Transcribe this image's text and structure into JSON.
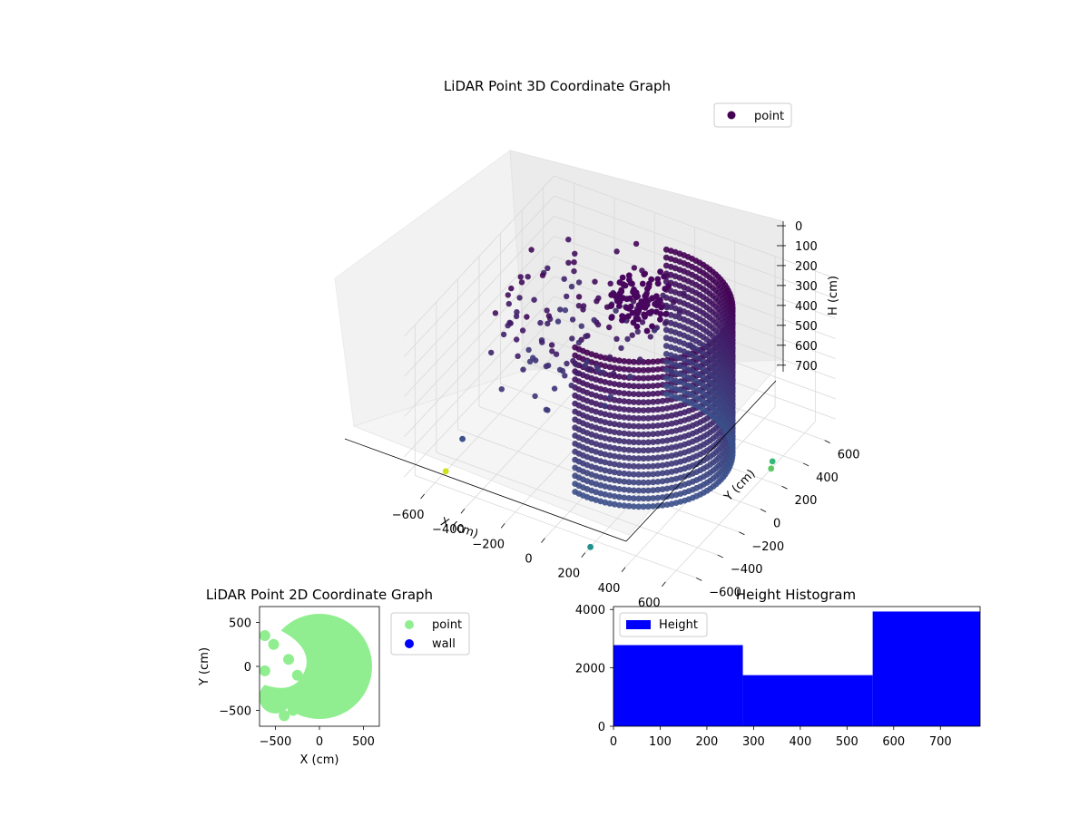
{
  "figure": {
    "background": "#ffffff"
  },
  "chart_data": [
    {
      "type": "scatter",
      "projection": "3d",
      "title": "LiDAR Point 3D Coordinate Graph",
      "xlabel": "X (cm)",
      "ylabel": "Y (cm)",
      "zlabel": "H (cm)",
      "xlim": [
        -700,
        700
      ],
      "ylim": [
        -700,
        700
      ],
      "zlim": [
        750,
        0
      ],
      "xticks": [
        "−600",
        "−400",
        "−200",
        "0",
        "200",
        "400",
        "600"
      ],
      "yticks": [
        "−600",
        "−400",
        "−200",
        "0",
        "200",
        "400",
        "600"
      ],
      "zticks": [
        "0",
        "100",
        "200",
        "300",
        "400",
        "500",
        "600",
        "700"
      ],
      "colormap": "viridis",
      "legend": {
        "placement": "top-right",
        "entries": [
          {
            "label": "point",
            "color": "#440154"
          }
        ]
      },
      "series": [
        {
          "name": "point",
          "wall": {
            "shape": "semicircular arc",
            "radius_approx": 600,
            "h_range": [
              0,
              750
            ]
          },
          "stray_points": [
            {
              "x": -650,
              "y": -250,
              "h": 750,
              "color": "#3b528b"
            },
            {
              "x": -600,
              "y": -500,
              "h": 750,
              "color": "#cfe11c"
            },
            {
              "x": 200,
              "y": -650,
              "h": 750,
              "color": "#21918c"
            },
            {
              "x": 620,
              "y": 250,
              "h": 720,
              "color": "#5ec962"
            },
            {
              "x": 600,
              "y": 300,
              "h": 720,
              "color": "#35b779"
            }
          ]
        }
      ],
      "grid": true
    },
    {
      "type": "scatter",
      "title": "LiDAR Point 2D Coordinate Graph",
      "xlabel": "X (cm)",
      "ylabel": "Y (cm)",
      "xlim": [
        -680,
        680
      ],
      "ylim": [
        -680,
        680
      ],
      "xticks": [
        "−500",
        "0",
        "500"
      ],
      "yticks": [
        "500",
        "0",
        "−500"
      ],
      "legend": {
        "placement": "right",
        "entries": [
          {
            "label": "point",
            "color": "#90ee90"
          },
          {
            "label": "wall",
            "color": "#0000ff"
          }
        ]
      },
      "series": [
        {
          "name": "point",
          "color": "#90ee90",
          "shape": "disc of points, radius ≈ 600"
        },
        {
          "name": "wall",
          "color": "#0000ff",
          "points": []
        }
      ]
    },
    {
      "type": "bar",
      "title": "Height Histogram",
      "xlabel": "",
      "ylabel": "",
      "xlim": [
        0,
        785
      ],
      "ylim": [
        0,
        4100
      ],
      "xticks": [
        "0",
        "100",
        "200",
        "300",
        "400",
        "500",
        "600",
        "700"
      ],
      "yticks": [
        "0",
        "2000",
        "4000"
      ],
      "legend": {
        "placement": "top-left",
        "entries": [
          {
            "label": "Height",
            "color": "#0000ff"
          }
        ]
      },
      "bins": [
        {
          "x0": 0,
          "x1": 277,
          "count": 2780
        },
        {
          "x0": 277,
          "x1": 555,
          "count": 1750
        },
        {
          "x0": 555,
          "x1": 785,
          "count": 3930
        }
      ],
      "color": "#0000ff"
    }
  ]
}
